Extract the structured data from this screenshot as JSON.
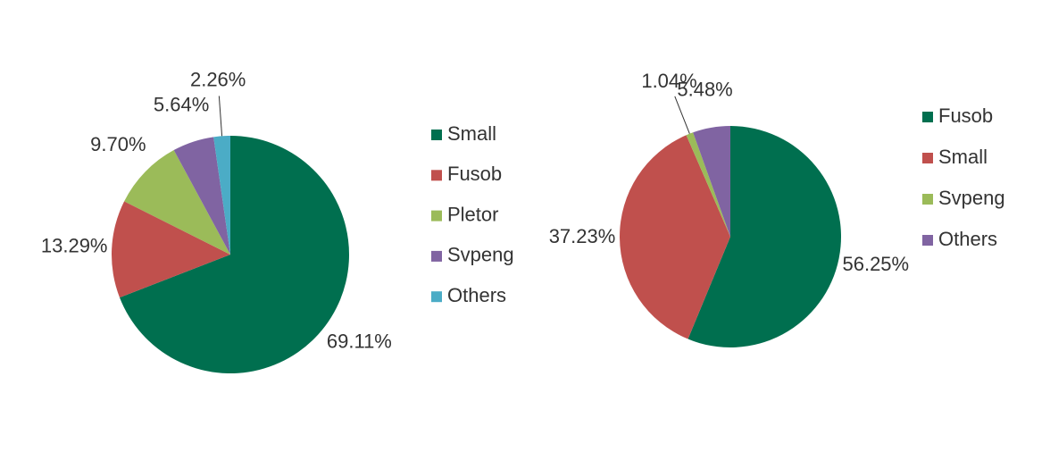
{
  "chart_data": [
    {
      "type": "pie",
      "categories": [
        "Small",
        "Fusob",
        "Pletor",
        "Svpeng",
        "Others"
      ],
      "values": [
        69.11,
        13.29,
        9.7,
        5.64,
        2.26
      ],
      "value_labels": [
        "69.11%",
        "13.29%",
        "9.70%",
        "5.64%",
        "2.26%"
      ],
      "colors": [
        "#006f4f",
        "#c0504d",
        "#9bbb59",
        "#8064a2",
        "#4bacc6"
      ]
    },
    {
      "type": "pie",
      "categories": [
        "Fusob",
        "Small",
        "Svpeng",
        "Others"
      ],
      "values": [
        56.25,
        37.23,
        1.04,
        5.48
      ],
      "value_labels": [
        "56.25%",
        "37.23%",
        "1.04%",
        "5.48%"
      ],
      "colors": [
        "#006f4f",
        "#c0504d",
        "#9bbb59",
        "#8064a2"
      ]
    }
  ]
}
